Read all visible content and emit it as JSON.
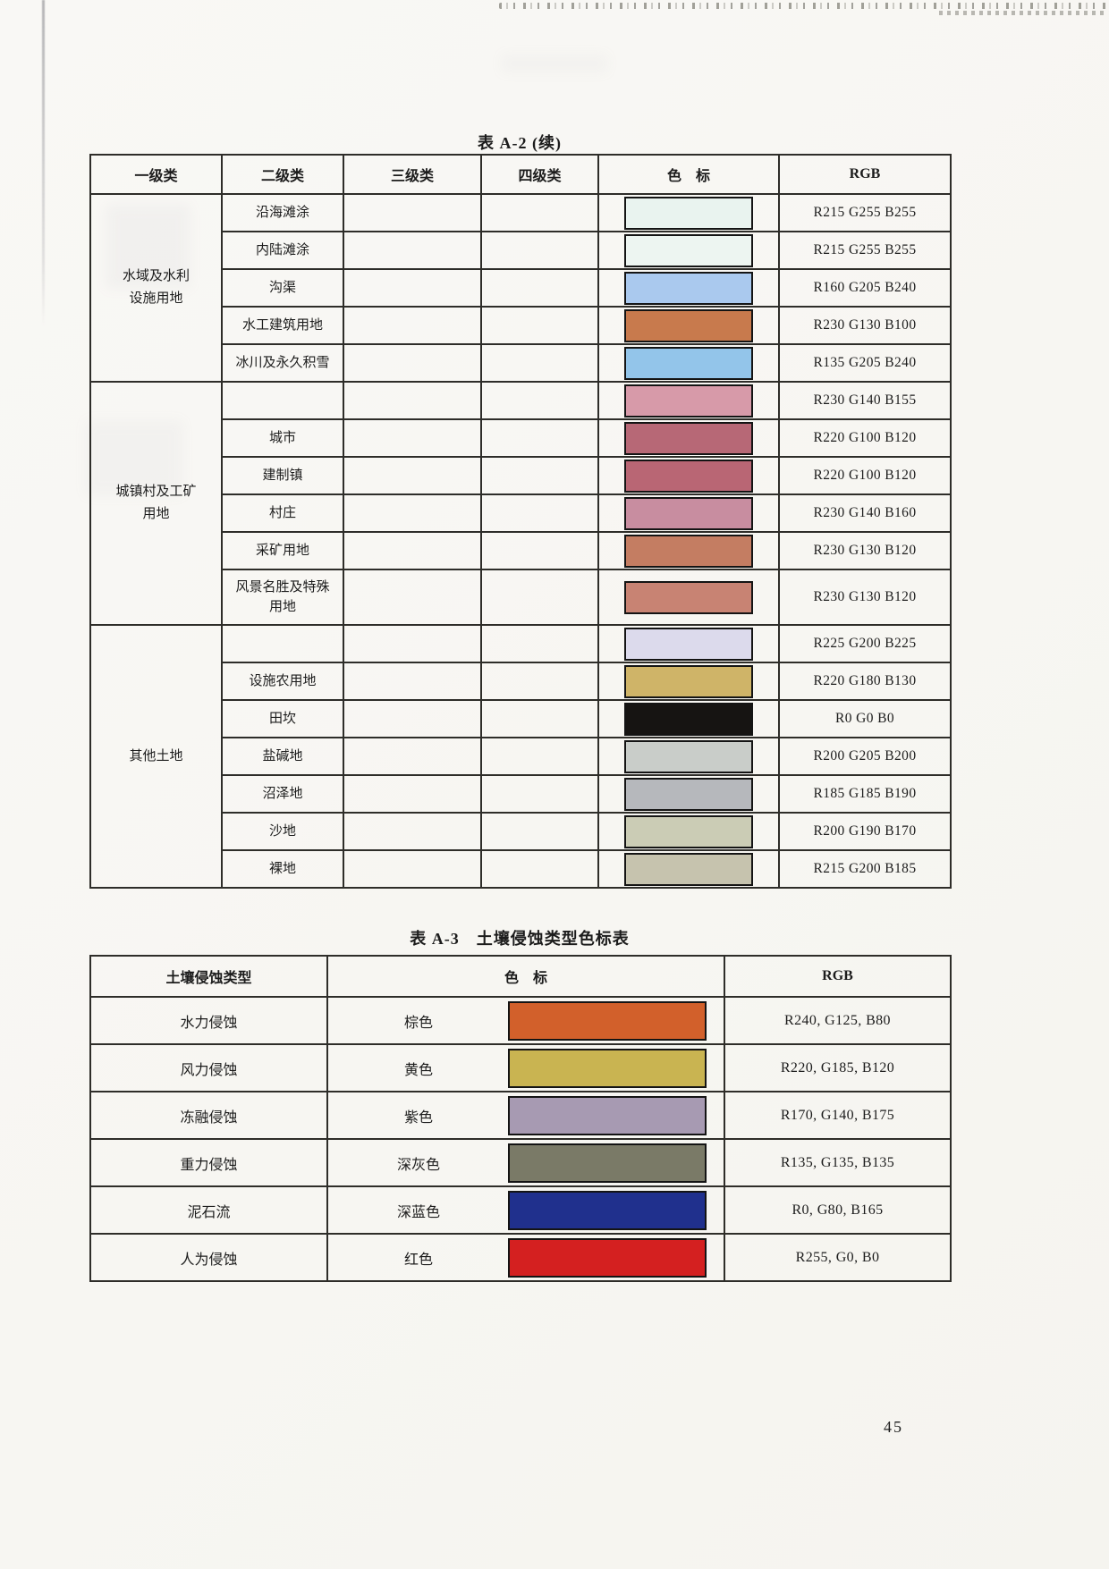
{
  "page": {
    "number": "45"
  },
  "tableA2": {
    "title": "表 A-2 (续)",
    "headers": [
      "一级类",
      "二级类",
      "三级类",
      "四级类",
      "色　标",
      "RGB"
    ],
    "groups": [
      {
        "label_lines": [
          "水域及水利",
          "设施用地"
        ],
        "start": 0,
        "span": 5
      },
      {
        "label_lines": [
          "城镇村及工矿",
          "用地"
        ],
        "start": 5,
        "span": 6
      },
      {
        "label_lines": [
          "其他土地"
        ],
        "start": 11,
        "span": 7
      }
    ],
    "rows": [
      {
        "level2": "沿海滩涂",
        "level3": "",
        "level4": "",
        "swatch_hex": "#e9f3ef",
        "rgb": "R215 G255 B255"
      },
      {
        "level2": "内陆滩涂",
        "level3": "",
        "level4": "",
        "swatch_hex": "#edf5f1",
        "rgb": "R215 G255 B255"
      },
      {
        "level2": "沟渠",
        "level3": "",
        "level4": "",
        "swatch_hex": "#aac9ee",
        "rgb": "R160 G205 B240"
      },
      {
        "level2": "水工建筑用地",
        "level3": "",
        "level4": "",
        "swatch_hex": "#c87a4d",
        "rgb": "R230 G130 B100"
      },
      {
        "level2": "冰川及永久积雪",
        "level3": "",
        "level4": "",
        "swatch_hex": "#93c5ea",
        "rgb": "R135 G205 B240"
      },
      {
        "level2": "",
        "level3": "",
        "level4": "",
        "swatch_hex": "#d79aa9",
        "rgb": "R230 G140 B155"
      },
      {
        "level2": "城市",
        "level3": "",
        "level4": "",
        "swatch_hex": "#b76876",
        "rgb": "R220 G100 B120"
      },
      {
        "level2": "建制镇",
        "level3": "",
        "level4": "",
        "swatch_hex": "#b96674",
        "rgb": "R220 G100 B120"
      },
      {
        "level2": "村庄",
        "level3": "",
        "level4": "",
        "swatch_hex": "#c88da0",
        "rgb": "R230 G140 B160"
      },
      {
        "level2": "采矿用地",
        "level3": "",
        "level4": "",
        "swatch_hex": "#c47d62",
        "rgb": "R230 G130 B120"
      },
      {
        "level2": "风景名胜及特殊用地",
        "level3": "",
        "level4": "",
        "swatch_hex": "#c88373",
        "rgb": "R230 G130 B120",
        "tall": true
      },
      {
        "level2": "",
        "level3": "",
        "level4": "",
        "swatch_hex": "#dcdaec",
        "rgb": "R225 G200 B225"
      },
      {
        "level2": "设施农用地",
        "level3": "",
        "level4": "",
        "swatch_hex": "#cfb468",
        "rgb": "R220 G180 B130"
      },
      {
        "level2": "田坎",
        "level3": "",
        "level4": "",
        "swatch_hex": "#161412",
        "rgb": "R0 G0 B0"
      },
      {
        "level2": "盐碱地",
        "level3": "",
        "level4": "",
        "swatch_hex": "#c9cdc9",
        "rgb": "R200 G205 B200"
      },
      {
        "level2": "沼泽地",
        "level3": "",
        "level4": "",
        "swatch_hex": "#b6b8bc",
        "rgb": "R185 G185 B190"
      },
      {
        "level2": "沙地",
        "level3": "",
        "level4": "",
        "swatch_hex": "#cbccb5",
        "rgb": "R200 G190 B170"
      },
      {
        "level2": "裸地",
        "level3": "",
        "level4": "",
        "swatch_hex": "#c6c3ae",
        "rgb": "R215 G200 B185"
      }
    ]
  },
  "tableA3": {
    "title": "表 A-3　土壤侵蚀类型色标表",
    "headers": [
      "土壤侵蚀类型",
      "色　标",
      "RGB"
    ],
    "rows": [
      {
        "type": "水力侵蚀",
        "color_name": "棕色",
        "swatch_hex": "#d2602b",
        "rgb": "R240, G125, B80"
      },
      {
        "type": "风力侵蚀",
        "color_name": "黄色",
        "swatch_hex": "#c9b451",
        "rgb": "R220, G185, B120"
      },
      {
        "type": "冻融侵蚀",
        "color_name": "紫色",
        "swatch_hex": "#a79ab2",
        "rgb": "R170, G140, B175"
      },
      {
        "type": "重力侵蚀",
        "color_name": "深灰色",
        "swatch_hex": "#7a7a67",
        "rgb": "R135, G135, B135"
      },
      {
        "type": "泥石流",
        "color_name": "深蓝色",
        "swatch_hex": "#20308d",
        "rgb": "R0, G80, B165"
      },
      {
        "type": "人为侵蚀",
        "color_name": "红色",
        "swatch_hex": "#d42020",
        "rgb": "R255, G0, B0"
      }
    ]
  }
}
